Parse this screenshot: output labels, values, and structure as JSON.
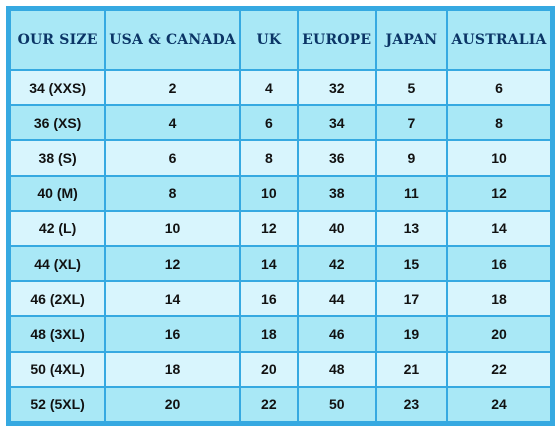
{
  "table": {
    "headers": [
      "OUR SIZE",
      "USA & CANADA",
      "UK",
      "EUROPE",
      "JAPAN",
      "AUSTRALIA"
    ],
    "rows": [
      [
        "34 (XXS)",
        "2",
        "4",
        "32",
        "5",
        "6"
      ],
      [
        "36 (XS)",
        "4",
        "6",
        "34",
        "7",
        "8"
      ],
      [
        "38 (S)",
        "6",
        "8",
        "36",
        "9",
        "10"
      ],
      [
        "40 (M)",
        "8",
        "10",
        "38",
        "11",
        "12"
      ],
      [
        "42 (L)",
        "10",
        "12",
        "40",
        "13",
        "14"
      ],
      [
        "44 (XL)",
        "12",
        "14",
        "42",
        "15",
        "16"
      ],
      [
        "46 (2XL)",
        "14",
        "16",
        "44",
        "17",
        "18"
      ],
      [
        "48 (3XL)",
        "16",
        "18",
        "46",
        "19",
        "20"
      ],
      [
        "50 (4XL)",
        "18",
        "20",
        "48",
        "21",
        "22"
      ],
      [
        "52 (5XL)",
        "20",
        "22",
        "50",
        "23",
        "24"
      ]
    ]
  },
  "colors": {
    "border": "#36a9e1",
    "header_bg": "#a9e8f6",
    "row_light": "#d8f5fd",
    "row_dark": "#a9e8f6",
    "header_text": "#0b3566"
  }
}
